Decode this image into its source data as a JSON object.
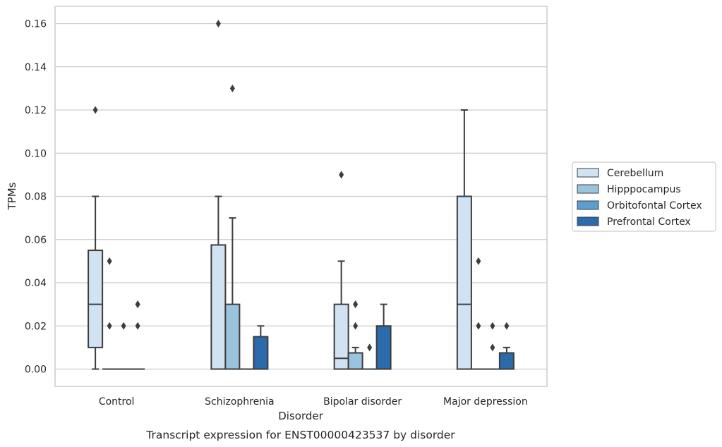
{
  "chart_data": {
    "type": "boxplot",
    "title": "",
    "caption": "Transcript expression for ENST00000423537 by disorder",
    "xlabel": "Disorder",
    "ylabel": "TPMs",
    "ylim": [
      -0.008,
      0.168
    ],
    "yticks": [
      "0.00",
      "0.02",
      "0.04",
      "0.06",
      "0.08",
      "0.10",
      "0.12",
      "0.14",
      "0.16"
    ],
    "grid": "horizontal",
    "legend_position": "right",
    "categories": [
      "Control",
      "Schizophrenia",
      "Bipolar disorder",
      "Major depression"
    ],
    "series": [
      {
        "name": "Cerebellum",
        "color": "#d1e2f2",
        "boxes": [
          {
            "q1": 0.01,
            "median": 0.03,
            "q3": 0.055,
            "whisker_low": 0.0,
            "whisker_high": 0.08,
            "outliers": [
              0.12
            ]
          },
          {
            "q1": 0.0,
            "median": 0.0,
            "q3": 0.0575,
            "whisker_low": 0.0,
            "whisker_high": 0.08,
            "outliers": [
              0.16
            ]
          },
          {
            "q1": 0.0,
            "median": 0.005,
            "q3": 0.03,
            "whisker_low": 0.0,
            "whisker_high": 0.05,
            "outliers": [
              0.09
            ]
          },
          {
            "q1": 0.0,
            "median": 0.03,
            "q3": 0.08,
            "whisker_low": 0.0,
            "whisker_high": 0.12,
            "outliers": []
          }
        ]
      },
      {
        "name": "Hipppocampus",
        "color": "#9ac3de",
        "boxes": [
          {
            "q1": 0.0,
            "median": 0.0,
            "q3": 0.0,
            "whisker_low": 0.0,
            "whisker_high": 0.0,
            "outliers": [
              0.05,
              0.02
            ]
          },
          {
            "q1": 0.0,
            "median": 0.0,
            "q3": 0.03,
            "whisker_low": 0.0,
            "whisker_high": 0.07,
            "outliers": [
              0.13
            ]
          },
          {
            "q1": 0.0,
            "median": 0.0,
            "q3": 0.0075,
            "whisker_low": 0.0,
            "whisker_high": 0.01,
            "outliers": [
              0.03,
              0.03,
              0.02
            ]
          },
          {
            "q1": 0.0,
            "median": 0.0,
            "q3": 0.0,
            "whisker_low": 0.0,
            "whisker_high": 0.0,
            "outliers": [
              0.05,
              0.02
            ]
          }
        ]
      },
      {
        "name": "Orbitofontal Cortex",
        "color": "#5a9fcf",
        "boxes": [
          {
            "q1": 0.0,
            "median": 0.0,
            "q3": 0.0,
            "whisker_low": 0.0,
            "whisker_high": 0.0,
            "outliers": [
              0.02
            ]
          },
          {
            "q1": 0.0,
            "median": 0.0,
            "q3": 0.0,
            "whisker_low": 0.0,
            "whisker_high": 0.0,
            "outliers": []
          },
          {
            "q1": 0.0,
            "median": 0.0,
            "q3": 0.0,
            "whisker_low": 0.0,
            "whisker_high": 0.0,
            "outliers": [
              0.01
            ]
          },
          {
            "q1": 0.0,
            "median": 0.0,
            "q3": 0.0,
            "whisker_low": 0.0,
            "whisker_high": 0.0,
            "outliers": [
              0.02,
              0.01
            ]
          }
        ]
      },
      {
        "name": "Prefrontal Cortex",
        "color": "#2b6aab",
        "boxes": [
          {
            "q1": 0.0,
            "median": 0.0,
            "q3": 0.0,
            "whisker_low": 0.0,
            "whisker_high": 0.0,
            "outliers": [
              0.03,
              0.03,
              0.02
            ]
          },
          {
            "q1": 0.0,
            "median": 0.0,
            "q3": 0.015,
            "whisker_low": 0.0,
            "whisker_high": 0.02,
            "outliers": []
          },
          {
            "q1": 0.0,
            "median": 0.0,
            "q3": 0.02,
            "whisker_low": 0.0,
            "whisker_high": 0.03,
            "outliers": []
          },
          {
            "q1": 0.0,
            "median": 0.0,
            "q3": 0.0075,
            "whisker_low": 0.0,
            "whisker_high": 0.01,
            "outliers": [
              0.02
            ]
          }
        ]
      }
    ],
    "colors": {
      "grid": "#cccccc",
      "frame": "#cccccc",
      "line": "#3d3d3d",
      "text": "#262626"
    }
  }
}
